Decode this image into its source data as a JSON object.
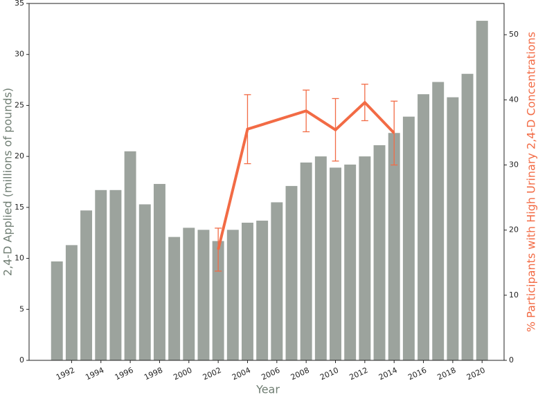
{
  "chart_data": {
    "type": "bar_line",
    "xlabel": "Year",
    "ylabel": "2,4-D Applied (millions of pounds)",
    "y2label": "% Participants with High Urinary 2,4-D Concentrations",
    "ylabel_color": "#6f7d72",
    "y2label_color": "#f26b45",
    "xlim": [
      1989.1,
      2021.5
    ],
    "xticks": [
      1992,
      1994,
      1996,
      1998,
      2000,
      2002,
      2004,
      2006,
      2008,
      2010,
      2012,
      2014,
      2016,
      2018,
      2020
    ],
    "ylim": [
      0,
      35
    ],
    "yticks": [
      0,
      5,
      10,
      15,
      20,
      25,
      30,
      35
    ],
    "y2lim": [
      0,
      54.8
    ],
    "y2ticks": [
      0,
      10,
      20,
      30,
      40,
      50
    ],
    "series": [
      {
        "type": "bar",
        "color": "#9ca39d",
        "x": [
          1991,
          1992,
          1993,
          1994,
          1995,
          1996,
          1997,
          1998,
          1999,
          2000,
          2001,
          2002,
          2003,
          2004,
          2005,
          2006,
          2007,
          2008,
          2009,
          2010,
          2011,
          2012,
          2013,
          2014,
          2015,
          2016,
          2017,
          2018,
          2019,
          2020
        ],
        "values": [
          9.7,
          11.3,
          14.7,
          16.7,
          16.7,
          20.5,
          15.3,
          17.3,
          12.1,
          13.0,
          12.8,
          11.7,
          12.8,
          13.5,
          13.7,
          15.5,
          17.1,
          19.4,
          20.0,
          18.9,
          19.2,
          20.0,
          21.1,
          22.3,
          23.9,
          26.1,
          27.3,
          25.8,
          28.1,
          33.3
        ]
      },
      {
        "type": "line",
        "axis": "y2",
        "color": "#f26b45",
        "x": [
          2002,
          2004,
          2008,
          2010,
          2012,
          2014
        ],
        "values": [
          17.0,
          35.5,
          38.3,
          35.4,
          39.6,
          34.9
        ],
        "errors": [
          3.3,
          5.3,
          3.2,
          4.8,
          2.8,
          4.9
        ]
      }
    ]
  }
}
